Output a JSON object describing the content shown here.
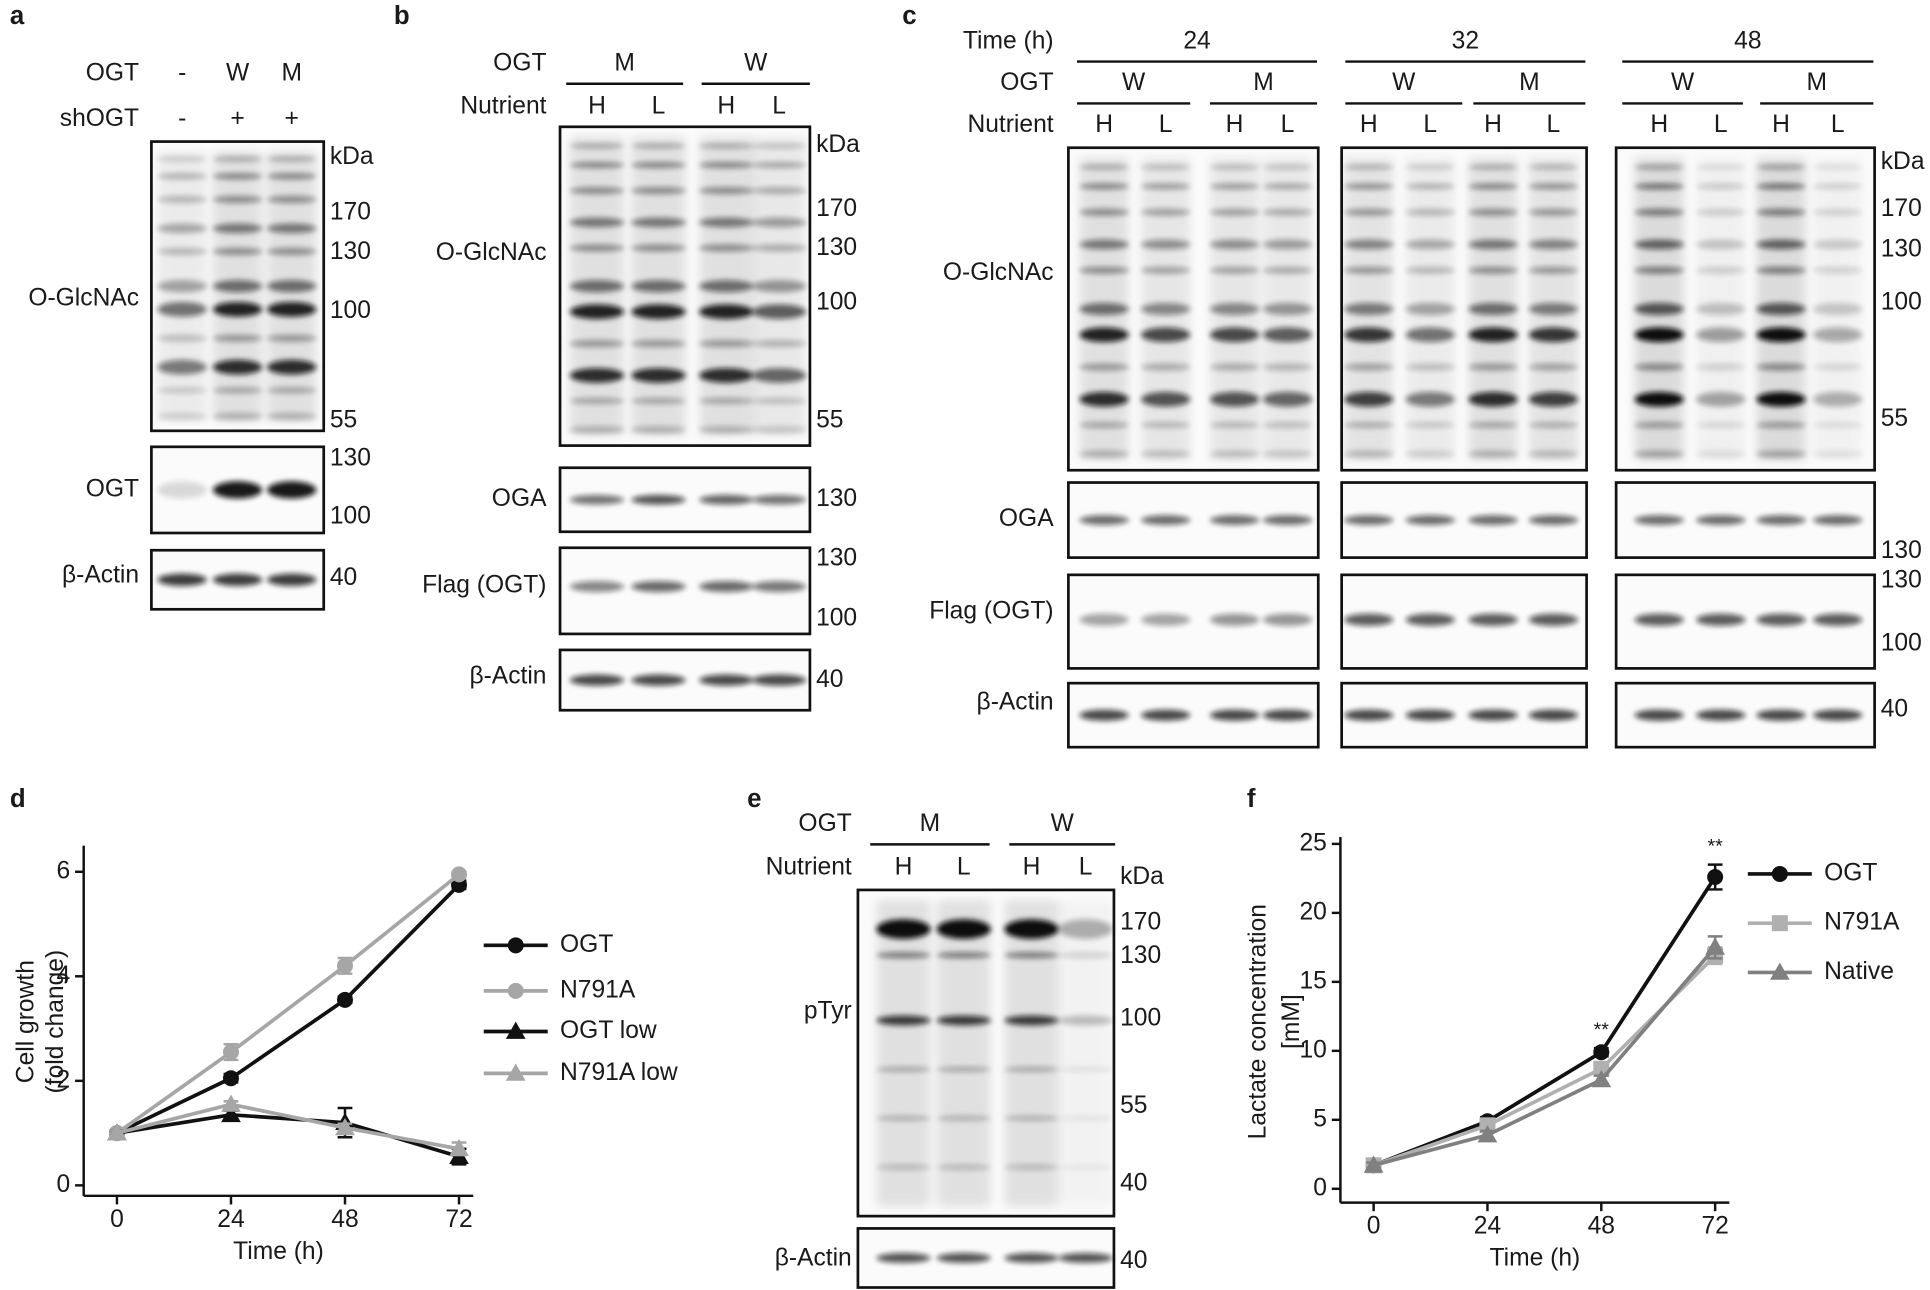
{
  "panels": {
    "a": {
      "letter": "a",
      "header": [
        {
          "label": "OGT",
          "lanes": [
            "-",
            "W",
            "M"
          ]
        },
        {
          "label": "shOGT",
          "lanes": [
            "-",
            "+",
            "+"
          ]
        }
      ],
      "blots": [
        {
          "label": "O-GlcNAc",
          "markers": [
            "kDa",
            "170",
            "130",
            "100",
            "55"
          ]
        },
        {
          "label": "OGT",
          "markers": [
            "130",
            "100"
          ]
        },
        {
          "label": "β-Actin",
          "markers": [
            "40"
          ]
        }
      ]
    },
    "b": {
      "letter": "b",
      "header": [
        {
          "label": "OGT",
          "groups": [
            "M",
            "W"
          ]
        },
        {
          "label": "Nutrient",
          "lanes": [
            "H",
            "L",
            "H",
            "L"
          ]
        }
      ],
      "blots": [
        {
          "label": "O-GlcNAc",
          "markers": [
            "kDa",
            "170",
            "130",
            "100",
            "55"
          ]
        },
        {
          "label": "OGA",
          "markers": [
            "130"
          ]
        },
        {
          "label": "Flag (OGT)",
          "markers": [
            "130",
            "100"
          ]
        },
        {
          "label": "β-Actin",
          "markers": [
            "40"
          ]
        }
      ]
    },
    "c": {
      "letter": "c",
      "header": [
        {
          "label": "Time (h)",
          "groups": [
            "24",
            "32",
            "48"
          ]
        },
        {
          "label": "OGT",
          "groups": [
            "W",
            "M",
            "W",
            "M",
            "W",
            "M"
          ]
        },
        {
          "label": "Nutrient",
          "lanes": [
            "H",
            "L",
            "H",
            "L",
            "H",
            "L",
            "H",
            "L",
            "H",
            "L",
            "H",
            "L"
          ]
        }
      ],
      "blots": [
        {
          "label": "O-GlcNAc",
          "markers": [
            "kDa",
            "170",
            "130",
            "100",
            "55"
          ]
        },
        {
          "label": "OGA",
          "markers": [
            "130"
          ]
        },
        {
          "label": "Flag (OGT)",
          "markers": [
            "130",
            "100"
          ]
        },
        {
          "label": "β-Actin",
          "markers": [
            "40"
          ]
        }
      ]
    },
    "e": {
      "letter": "e",
      "header": [
        {
          "label": "OGT",
          "groups": [
            "M",
            "W"
          ]
        },
        {
          "label": "Nutrient",
          "lanes": [
            "H",
            "L",
            "H",
            "L"
          ]
        }
      ],
      "blots": [
        {
          "label": "pTyr",
          "markers": [
            "kDa",
            "170",
            "130",
            "100",
            "55",
            "40"
          ]
        },
        {
          "label": "β-Actin",
          "markers": [
            "40"
          ]
        }
      ]
    }
  },
  "chart_data": [
    {
      "type": "line",
      "letter": "d",
      "xlabel": "Time (h)",
      "ylabel": [
        "Cell growth",
        "(fold change)"
      ],
      "x": [
        0,
        24,
        48,
        72
      ],
      "xlim": [
        -7,
        75
      ],
      "xticks": [
        0,
        24,
        48,
        72
      ],
      "ylim": [
        -0.2,
        6.5
      ],
      "yticks": [
        0,
        2,
        4,
        6
      ],
      "legend": "right",
      "series": [
        {
          "name": "OGT",
          "color": "#111111",
          "marker": "circle",
          "values": [
            1,
            2.05,
            3.55,
            5.75
          ],
          "errors": [
            0.05,
            0.08,
            0.06,
            0.08
          ]
        },
        {
          "name": "N791A",
          "color": "#a6a6a6",
          "marker": "circle",
          "values": [
            1,
            2.55,
            4.2,
            5.95
          ],
          "errors": [
            0.05,
            0.15,
            0.15,
            0.05
          ]
        },
        {
          "name": "OGT low",
          "color": "#111111",
          "marker": "triangle",
          "values": [
            1,
            1.35,
            1.2,
            0.55
          ],
          "errors": [
            0.05,
            0.08,
            0.28,
            0.15
          ]
        },
        {
          "name": "N791A low",
          "color": "#a6a6a6",
          "marker": "triangle",
          "values": [
            1,
            1.55,
            1.1,
            0.7
          ],
          "errors": [
            0.05,
            0.06,
            0.08,
            0.12
          ]
        }
      ]
    },
    {
      "type": "line",
      "letter": "f",
      "xlabel": "Time (h)",
      "ylabel": [
        "Lactate concentration",
        "[mM]"
      ],
      "x": [
        0,
        24,
        48,
        72
      ],
      "xlim": [
        -7,
        75
      ],
      "xticks": [
        0,
        24,
        48,
        72
      ],
      "ylim": [
        -1,
        25.5
      ],
      "yticks": [
        0,
        5,
        10,
        15,
        20,
        25
      ],
      "legend": "right",
      "series": [
        {
          "name": "OGT",
          "color": "#111111",
          "marker": "circle",
          "values": [
            1.7,
            4.9,
            9.9,
            22.6
          ],
          "errors": [
            0.2,
            0.3,
            0.3,
            0.9
          ]
        },
        {
          "name": "N791A",
          "color": "#b0b0b0",
          "marker": "square",
          "values": [
            1.7,
            4.6,
            8.7,
            16.9
          ],
          "errors": [
            0.2,
            0.3,
            0.3,
            0.6
          ]
        },
        {
          "name": "Native",
          "color": "#808080",
          "marker": "triangle",
          "values": [
            1.7,
            3.9,
            7.9,
            17.5
          ],
          "errors": [
            0.2,
            0.3,
            0.3,
            0.8
          ]
        }
      ],
      "annotations": [
        {
          "text": "**",
          "x": 48
        },
        {
          "text": "**",
          "x": 72
        }
      ]
    }
  ]
}
